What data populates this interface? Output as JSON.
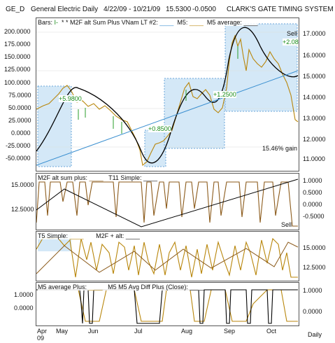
{
  "header": {
    "symbol": "GE_D",
    "name": "General Electric Daily",
    "range": "4/22/09 - 10/21/09",
    "last": "15.5300",
    "change": "-0.0500",
    "system": "CLARK'S GATE TIMING SYSTEM ©"
  },
  "pane1": {
    "legend": {
      "bars": "Bars:",
      "m2f": "* * M2F alt Sum Plus VNam LT #2:",
      "m5": "M5:",
      "m5avg": "M5 average:"
    },
    "left_ticks": [
      "200.0000",
      "175.0000",
      "150.0000",
      "125.0000",
      "100.0000",
      "75.0000",
      "50.0000",
      "25.0000",
      "0.0000",
      "-25.0000",
      "-50.0000"
    ],
    "right_ticks": [
      "17.0000",
      "16.0000",
      "15.0000",
      "14.0000",
      "13.0000",
      "12.0000",
      "11.0000"
    ],
    "trade_labels": [
      "+5.9800",
      "+0.8500",
      "+1.2500",
      "+2.08"
    ],
    "sell_label": "Sell",
    "gain": "15.46% gain"
  },
  "pane2": {
    "legend": {
      "a": "M2F alt sum plus:",
      "b": "T11 Simple:"
    },
    "left_ticks": [
      "15.0000",
      "12.5000"
    ],
    "right_ticks": [
      "1.0000",
      "0.5000",
      "0.0000",
      "-0.5000"
    ],
    "sell_label": "Sell"
  },
  "pane3": {
    "legend": {
      "a": "T5 Simple:",
      "b": "M2F + alt:"
    },
    "right_ticks": [
      "15.0000",
      "12.5000"
    ]
  },
  "pane4": {
    "legend": {
      "a": "M5 average Plus:",
      "b": "M5 M5 Avg Diff Plus (Close):"
    },
    "left_ticks": [
      "1.0000",
      "0.0000"
    ],
    "right_ticks": [
      "1.0000",
      "0.0000"
    ]
  },
  "xaxis": {
    "months": [
      "Apr",
      "May",
      "Jun",
      "Jul",
      "Aug",
      "Sep",
      "Oct"
    ],
    "year": "09",
    "period": "Daily"
  },
  "colors": {
    "price": "#b8860b",
    "avg": "#000000",
    "trend": "#3a8fd0",
    "box_fill": "#d4e8f7",
    "box_stroke": "#6aa6d8",
    "up": "#2a9d2a",
    "signal": "#8b5a1a"
  }
}
